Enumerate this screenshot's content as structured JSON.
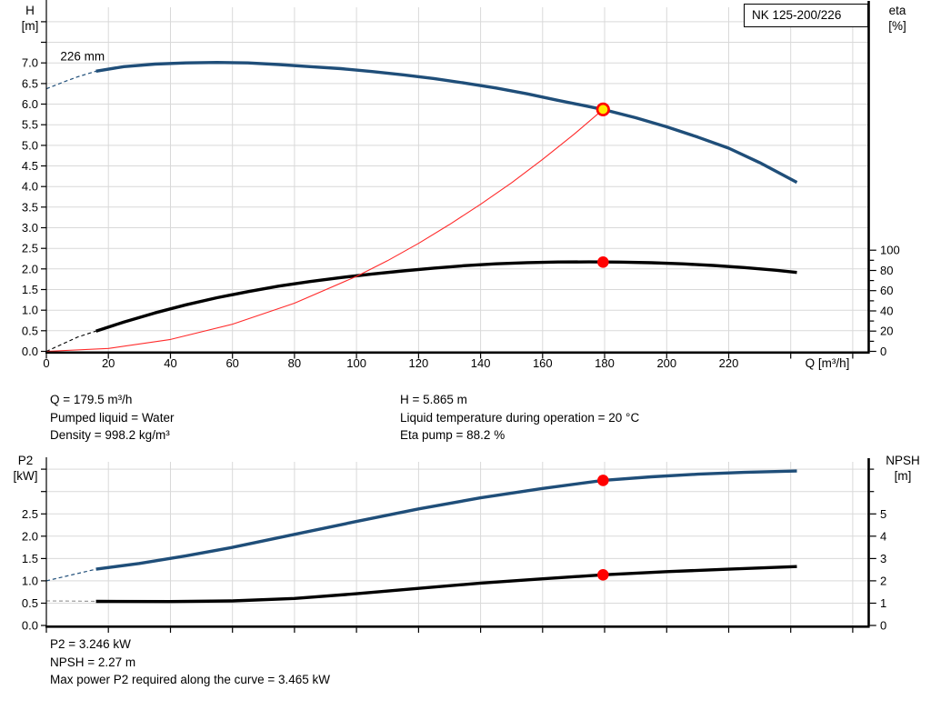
{
  "pump_model": "NK 125-200/226",
  "colors": {
    "curve_blue": "#1F4E79",
    "curve_black": "#000000",
    "system_red": "#FF2A2A",
    "marker_red": "#FF0000",
    "marker_yellow": "#FFE800",
    "grid": "#D9D9D9",
    "gray_dash": "#999999",
    "axis": "#000000"
  },
  "info_top": {
    "left": [
      "Q = 179.5 m³/h",
      "Pumped liquid = Water",
      "Density = 998.2 kg/m³"
    ],
    "right": [
      "H = 5.865 m",
      "Liquid temperature during operation = 20 °C",
      "Eta pump = 88.2 %"
    ]
  },
  "info_bottom": [
    "P2 = 3.246 kW",
    "NPSH = 2.27 m",
    "Max power P2 required along the curve = 3.465 kW"
  ],
  "chart_data": [
    {
      "id": "h_q",
      "type": "line",
      "title": "NK 125-200/226",
      "xlabel": "Q [m³/h]",
      "xlim": [
        0,
        265
      ],
      "ylim_left": [
        0,
        8.35
      ],
      "ylim_right": [
        0,
        340
      ],
      "annotation": {
        "text": "226 mm",
        "q": 4.5,
        "value": 7.15
      },
      "x_axis": {
        "label": "Q [m³/h]",
        "ticks": [
          0,
          20,
          40,
          60,
          80,
          100,
          120,
          140,
          160,
          180,
          200,
          220,
          240,
          260
        ],
        "tick_labels": [
          "0",
          "20",
          "40",
          "60",
          "80",
          "100",
          "120",
          "140",
          "160",
          "180",
          "200",
          "220",
          "",
          ""
        ]
      },
      "left_axis": {
        "title_lines": [
          "H",
          "[m]"
        ],
        "ticks": [
          0,
          0.5,
          1,
          1.5,
          2,
          2.5,
          3,
          3.5,
          4,
          4.5,
          5,
          5.5,
          6,
          6.5,
          7,
          7.5,
          8
        ],
        "tick_labels": [
          "0.0",
          "0.5",
          "1.0",
          "1.5",
          "2.0",
          "2.5",
          "3.0",
          "3.5",
          "4.0",
          "4.5",
          "5.0",
          "5.5",
          "6.0",
          "6.5",
          "7.0",
          "",
          ""
        ]
      },
      "right_axis": {
        "title_lines": [
          "eta",
          "[%]"
        ],
        "ticks": [
          0,
          10,
          20,
          30,
          40,
          50,
          60,
          70,
          80,
          90,
          100
        ],
        "tick_labels": [
          "0",
          "",
          "20",
          "",
          "40",
          "",
          "60",
          "",
          "80",
          "",
          "100"
        ]
      },
      "grid_v": [
        20,
        40,
        60,
        80,
        100,
        120,
        140,
        160,
        180,
        200,
        220,
        240,
        260
      ],
      "grid_h": [
        0.5,
        1,
        1.5,
        2,
        2.5,
        3,
        3.5,
        4,
        4.5,
        5,
        5.5,
        6,
        6.5,
        7,
        7.5,
        8
      ],
      "series": [
        {
          "name": "head-curve-dashed",
          "axis": "left",
          "color": "curve_blue",
          "width": 1.2,
          "dash": "4 3",
          "points": [
            [
              0,
              6.37
            ],
            [
              5,
              6.52
            ],
            [
              10,
              6.66
            ],
            [
              16,
              6.8
            ]
          ]
        },
        {
          "name": "head-curve",
          "axis": "left",
          "color": "curve_blue",
          "width": 3.4,
          "dash": null,
          "points": [
            [
              16,
              6.8
            ],
            [
              25,
              6.91
            ],
            [
              35,
              6.97
            ],
            [
              45,
              7.0
            ],
            [
              55,
              7.01
            ],
            [
              65,
              7.0
            ],
            [
              75,
              6.96
            ],
            [
              85,
              6.91
            ],
            [
              95,
              6.86
            ],
            [
              105,
              6.79
            ],
            [
              115,
              6.71
            ],
            [
              125,
              6.62
            ],
            [
              135,
              6.51
            ],
            [
              145,
              6.39
            ],
            [
              155,
              6.25
            ],
            [
              165,
              6.09
            ],
            [
              179.5,
              5.87
            ],
            [
              190,
              5.67
            ],
            [
              200,
              5.45
            ],
            [
              210,
              5.2
            ],
            [
              220,
              4.93
            ],
            [
              230,
              4.58
            ],
            [
              242,
              4.1
            ]
          ]
        },
        {
          "name": "eta-curve-dashed",
          "axis": "right",
          "color": "curve_black",
          "width": 1.1,
          "dash": "4 3",
          "points": [
            [
              0,
              0
            ],
            [
              5,
              7
            ],
            [
              10,
              14
            ],
            [
              16,
              20
            ]
          ]
        },
        {
          "name": "eta-curve",
          "axis": "right",
          "color": "curve_black",
          "width": 3.4,
          "dash": null,
          "points": [
            [
              16,
              20
            ],
            [
              25,
              29
            ],
            [
              35,
              38
            ],
            [
              45,
              46
            ],
            [
              55,
              53
            ],
            [
              65,
              59
            ],
            [
              75,
              64.5
            ],
            [
              85,
              69
            ],
            [
              95,
              73
            ],
            [
              105,
              76.5
            ],
            [
              115,
              79.5
            ],
            [
              125,
              82.3
            ],
            [
              135,
              84.7
            ],
            [
              145,
              86.5
            ],
            [
              155,
              87.7
            ],
            [
              165,
              88.3
            ],
            [
              175,
              88.4
            ],
            [
              185,
              88.2
            ],
            [
              195,
              87.6
            ],
            [
              205,
              86.5
            ],
            [
              215,
              84.9
            ],
            [
              225,
              82.8
            ],
            [
              235,
              80.2
            ],
            [
              242,
              78
            ]
          ]
        },
        {
          "name": "system-curve",
          "axis": "left",
          "color": "system_red",
          "width": 1.1,
          "dash": null,
          "points": [
            [
              0,
              0
            ],
            [
              20,
              0.07
            ],
            [
              40,
              0.29
            ],
            [
              60,
              0.66
            ],
            [
              80,
              1.17
            ],
            [
              100,
              1.82
            ],
            [
              110,
              2.2
            ],
            [
              120,
              2.62
            ],
            [
              130,
              3.08
            ],
            [
              140,
              3.57
            ],
            [
              150,
              4.09
            ],
            [
              160,
              4.66
            ],
            [
              170,
              5.26
            ],
            [
              179.5,
              5.87
            ]
          ]
        }
      ],
      "markers": [
        {
          "name": "duty-point-marker",
          "q": 179.5,
          "value": 5.87,
          "axis": "left",
          "style": "yellow-red"
        },
        {
          "name": "eta-point-marker",
          "q": 179.5,
          "value": 88.2,
          "axis": "right",
          "style": "red-dot"
        }
      ]
    },
    {
      "id": "p2_npsh",
      "type": "line",
      "title": "",
      "xlabel": "",
      "xlim": [
        0,
        265
      ],
      "ylim_left": [
        0,
        3.66
      ],
      "ylim_right": [
        0,
        7.33
      ],
      "annotation": null,
      "x_axis": {
        "label": "",
        "ticks": [
          0,
          20,
          40,
          60,
          80,
          100,
          120,
          140,
          160,
          180,
          200,
          220,
          240,
          260
        ],
        "tick_labels": [
          "",
          "",
          "",
          "",
          "",
          "",
          "",
          "",
          "",
          "",
          "",
          "",
          "",
          ""
        ]
      },
      "left_axis": {
        "title_lines": [
          "P2",
          "[kW]"
        ],
        "ticks": [
          0,
          0.5,
          1,
          1.5,
          2,
          2.5,
          3,
          3.5
        ],
        "tick_labels": [
          "0.0",
          "0.5",
          "1.0",
          "1.5",
          "2.0",
          "2.5",
          "",
          ""
        ]
      },
      "right_axis": {
        "title_lines": [
          "NPSH",
          "[m]"
        ],
        "ticks": [
          0,
          1,
          2,
          3,
          4,
          5,
          6,
          7
        ],
        "tick_labels": [
          "0",
          "1",
          "2",
          "3",
          "4",
          "5",
          "",
          ""
        ]
      },
      "grid_v": [
        20,
        40,
        60,
        80,
        100,
        120,
        140,
        160,
        180,
        200,
        220,
        240,
        260
      ],
      "grid_h": [
        0.5,
        1,
        1.5,
        2,
        2.5,
        3,
        3.5
      ],
      "series": [
        {
          "name": "p2-curve-dashed",
          "axis": "left",
          "color": "curve_blue",
          "width": 1.2,
          "dash": "4 3",
          "points": [
            [
              0,
              1.0
            ],
            [
              8,
              1.13
            ],
            [
              16,
              1.26
            ]
          ]
        },
        {
          "name": "p2-curve",
          "axis": "left",
          "color": "curve_blue",
          "width": 3.4,
          "dash": null,
          "points": [
            [
              16,
              1.26
            ],
            [
              30,
              1.39
            ],
            [
              45,
              1.56
            ],
            [
              60,
              1.75
            ],
            [
              80,
              2.04
            ],
            [
              100,
              2.33
            ],
            [
              120,
              2.61
            ],
            [
              140,
              2.86
            ],
            [
              160,
              3.07
            ],
            [
              179.5,
              3.25
            ],
            [
              195,
              3.33
            ],
            [
              210,
              3.39
            ],
            [
              225,
              3.43
            ],
            [
              242,
              3.46
            ]
          ]
        },
        {
          "name": "npsh-curve-dashed",
          "axis": "right",
          "color": "gray_dash",
          "width": 1.2,
          "dash": "4 3",
          "points": [
            [
              0,
              1.1
            ],
            [
              8,
              1.09
            ],
            [
              16,
              1.08
            ]
          ]
        },
        {
          "name": "npsh-curve",
          "axis": "right",
          "color": "curve_black",
          "width": 3.4,
          "dash": null,
          "points": [
            [
              16,
              1.08
            ],
            [
              40,
              1.07
            ],
            [
              60,
              1.1
            ],
            [
              80,
              1.21
            ],
            [
              100,
              1.42
            ],
            [
              120,
              1.66
            ],
            [
              140,
              1.9
            ],
            [
              160,
              2.09
            ],
            [
              179.5,
              2.27
            ],
            [
              200,
              2.41
            ],
            [
              220,
              2.52
            ],
            [
              242,
              2.64
            ]
          ]
        }
      ],
      "markers": [
        {
          "name": "p2-point-marker",
          "q": 179.5,
          "value": 3.25,
          "axis": "left",
          "style": "red-dot"
        },
        {
          "name": "npsh-point-marker",
          "q": 179.5,
          "value": 2.27,
          "axis": "right",
          "style": "red-dot"
        }
      ]
    }
  ]
}
